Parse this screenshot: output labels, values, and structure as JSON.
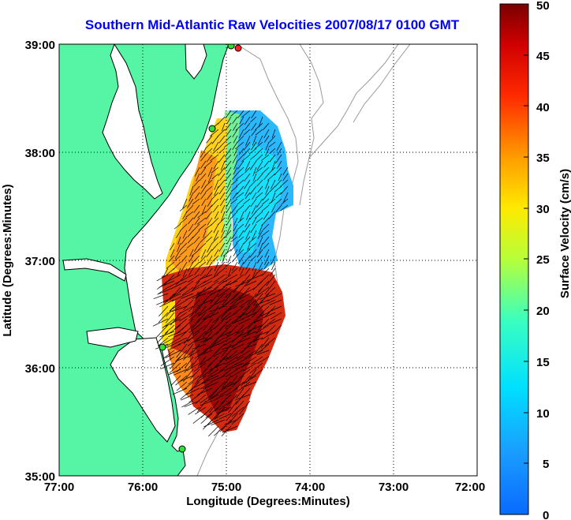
{
  "title": "Southern Mid-Atlantic Raw Velocities 2007/08/17 0100 GMT",
  "map": {
    "xlabel": "Longitude (Degrees:Minutes)",
    "ylabel": "Latitude (Degrees:Minutes)",
    "x_ticks": [
      "77:00",
      "76:00",
      "75:00",
      "74:00",
      "73:00",
      "72:00"
    ],
    "y_ticks": [
      "39:00",
      "38:00",
      "37:00",
      "36:00",
      "35:00"
    ],
    "xlim": [
      -77,
      -72
    ],
    "ylim": [
      35,
      39
    ],
    "grid": true
  },
  "colorbar": {
    "label": "Surface Velocity (cm/s)",
    "ticks": [
      "50",
      "45",
      "40",
      "35",
      "30",
      "25",
      "20",
      "15",
      "10",
      "5",
      "0"
    ],
    "range": [
      0,
      50
    ]
  },
  "colors": {
    "title": "#0000ff",
    "land": "#55f5a5",
    "coast": "#000000",
    "bathymetry": "#9a9a9a"
  }
}
